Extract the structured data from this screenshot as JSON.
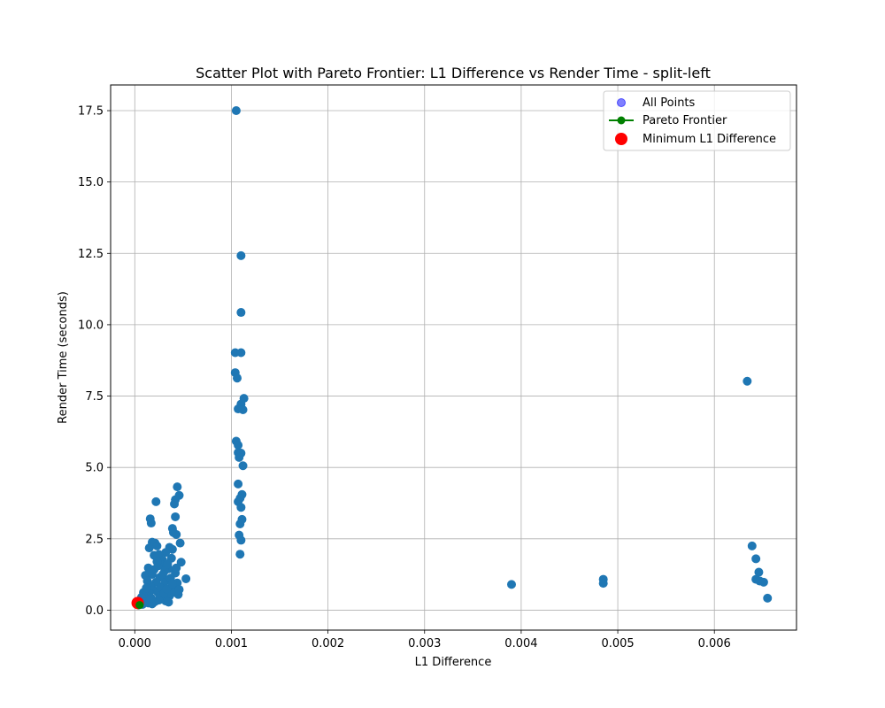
{
  "chart_data": {
    "type": "scatter",
    "title": "Scatter Plot with Pareto Frontier: L1 Difference vs Render Time - split-left",
    "xlabel": "L1 Difference",
    "ylabel": "Render Time (seconds)",
    "xlim": [
      -0.00025,
      0.00685
    ],
    "ylim": [
      -0.7,
      18.4
    ],
    "xticks": [
      0.0,
      0.001,
      0.002,
      0.003,
      0.004,
      0.005,
      0.006
    ],
    "xtick_labels": [
      "0.000",
      "0.001",
      "0.002",
      "0.003",
      "0.004",
      "0.005",
      "0.006"
    ],
    "yticks": [
      0.0,
      2.5,
      5.0,
      7.5,
      10.0,
      12.5,
      15.0,
      17.5
    ],
    "ytick_labels": [
      "0.0",
      "2.5",
      "5.0",
      "7.5",
      "10.0",
      "12.5",
      "15.0",
      "17.5"
    ],
    "grid": true,
    "legend_position": "top-right",
    "series": [
      {
        "name": "All Points",
        "color": "#1f77b4",
        "points": [
          [
            0.00105,
            17.5
          ],
          [
            0.0011,
            12.42
          ],
          [
            0.0011,
            10.43
          ],
          [
            0.00104,
            9.02
          ],
          [
            0.0011,
            9.02
          ],
          [
            0.00104,
            8.32
          ],
          [
            0.00106,
            8.13
          ],
          [
            0.00113,
            7.42
          ],
          [
            0.0011,
            7.22
          ],
          [
            0.00107,
            7.05
          ],
          [
            0.00112,
            7.02
          ],
          [
            0.00105,
            5.92
          ],
          [
            0.00107,
            5.78
          ],
          [
            0.00107,
            5.52
          ],
          [
            0.0011,
            5.5
          ],
          [
            0.00108,
            5.35
          ],
          [
            0.00112,
            5.06
          ],
          [
            0.00107,
            4.42
          ],
          [
            0.00111,
            4.05
          ],
          [
            0.00109,
            3.92
          ],
          [
            0.00107,
            3.8
          ],
          [
            0.0011,
            3.6
          ],
          [
            0.00111,
            3.18
          ],
          [
            0.00109,
            3.02
          ],
          [
            0.00108,
            2.63
          ],
          [
            0.0011,
            2.45
          ],
          [
            0.00109,
            1.96
          ],
          [
            0.00044,
            4.32
          ],
          [
            0.00046,
            4.02
          ],
          [
            0.00042,
            3.87
          ],
          [
            0.00041,
            3.72
          ],
          [
            0.00022,
            3.8
          ],
          [
            0.00042,
            3.27
          ],
          [
            0.00016,
            3.2
          ],
          [
            0.00017,
            3.05
          ],
          [
            0.00039,
            2.86
          ],
          [
            0.0004,
            2.72
          ],
          [
            0.00043,
            2.65
          ],
          [
            0.00018,
            2.38
          ],
          [
            0.00021,
            2.35
          ],
          [
            0.00047,
            2.35
          ],
          [
            0.00023,
            2.25
          ],
          [
            0.00015,
            2.18
          ],
          [
            0.00036,
            2.2
          ],
          [
            0.00039,
            2.13
          ],
          [
            0.00032,
            2.02
          ],
          [
            0.00025,
            1.95
          ],
          [
            0.0002,
            1.92
          ],
          [
            0.00048,
            1.68
          ],
          [
            0.00053,
            1.1
          ],
          [
            0.00038,
            1.82
          ],
          [
            0.00029,
            1.75
          ],
          [
            0.00027,
            1.6
          ],
          [
            0.00024,
            1.55
          ],
          [
            0.00014,
            1.48
          ],
          [
            0.00011,
            1.22
          ],
          [
            0.00035,
            1.45
          ],
          [
            0.00042,
            1.3
          ],
          [
            0.00031,
            1.38
          ],
          [
            0.00018,
            1.25
          ],
          [
            0.00026,
            1.15
          ],
          [
            0.00033,
            1.05
          ],
          [
            0.00044,
            0.95
          ],
          [
            0.0004,
            0.8
          ],
          [
            0.00038,
            0.68
          ],
          [
            0.00045,
            0.55
          ],
          [
            0.00036,
            0.5
          ],
          [
            0.00028,
            0.42
          ],
          [
            0.0003,
            0.88
          ],
          [
            0.00022,
            0.98
          ],
          [
            0.00019,
            0.72
          ],
          [
            0.00015,
            0.6
          ],
          [
            0.00012,
            0.48
          ],
          [
            9e-05,
            0.62
          ],
          [
            7e-05,
            0.45
          ],
          [
            6e-05,
            0.32
          ],
          [
            0.0001,
            0.28
          ],
          [
            0.00014,
            0.25
          ],
          [
            0.00018,
            0.22
          ],
          [
            0.00021,
            0.3
          ],
          [
            0.00025,
            0.35
          ],
          [
            0.00032,
            0.32
          ],
          [
            0.00035,
            0.28
          ],
          [
            0.00024,
            0.62
          ],
          [
            0.00027,
            0.78
          ],
          [
            0.00029,
            1.25
          ],
          [
            0.00016,
            0.85
          ],
          [
            0.00013,
            1.02
          ],
          [
            0.0002,
            1.42
          ],
          [
            0.00023,
            1.7
          ],
          [
            0.00034,
            1.62
          ],
          [
            0.00037,
            1.12
          ],
          [
            0.00041,
            0.62
          ],
          [
            0.00043,
            1.48
          ],
          [
            0.00012,
            0.78
          ],
          [
            0.00017,
            0.42
          ],
          [
            0.00026,
            0.48
          ],
          [
            0.0003,
            0.58
          ],
          [
            0.00033,
            0.75
          ],
          [
            0.00039,
            0.92
          ],
          [
            0.00046,
            0.72
          ],
          [
            8e-05,
            0.2
          ],
          [
            4e-05,
            0.18
          ],
          [
            5e-05,
            0.25
          ],
          [
            0.0039,
            0.9
          ],
          [
            0.00485,
            1.08
          ],
          [
            0.00485,
            0.94
          ],
          [
            0.00634,
            8.02
          ],
          [
            0.00639,
            2.25
          ],
          [
            0.00643,
            1.8
          ],
          [
            0.00646,
            1.33
          ],
          [
            0.00643,
            1.08
          ],
          [
            0.00647,
            1.02
          ],
          [
            0.00651,
            0.98
          ],
          [
            0.00655,
            0.42
          ]
        ]
      },
      {
        "name": "Pareto Frontier",
        "color": "#008000",
        "points": [
          [
            3e-05,
            0.28
          ],
          [
            4e-05,
            0.22
          ],
          [
            5e-05,
            0.18
          ]
        ]
      },
      {
        "name": "Minimum L1 Difference",
        "color": "#ff0000",
        "points": [
          [
            3e-05,
            0.25
          ]
        ]
      }
    ]
  }
}
